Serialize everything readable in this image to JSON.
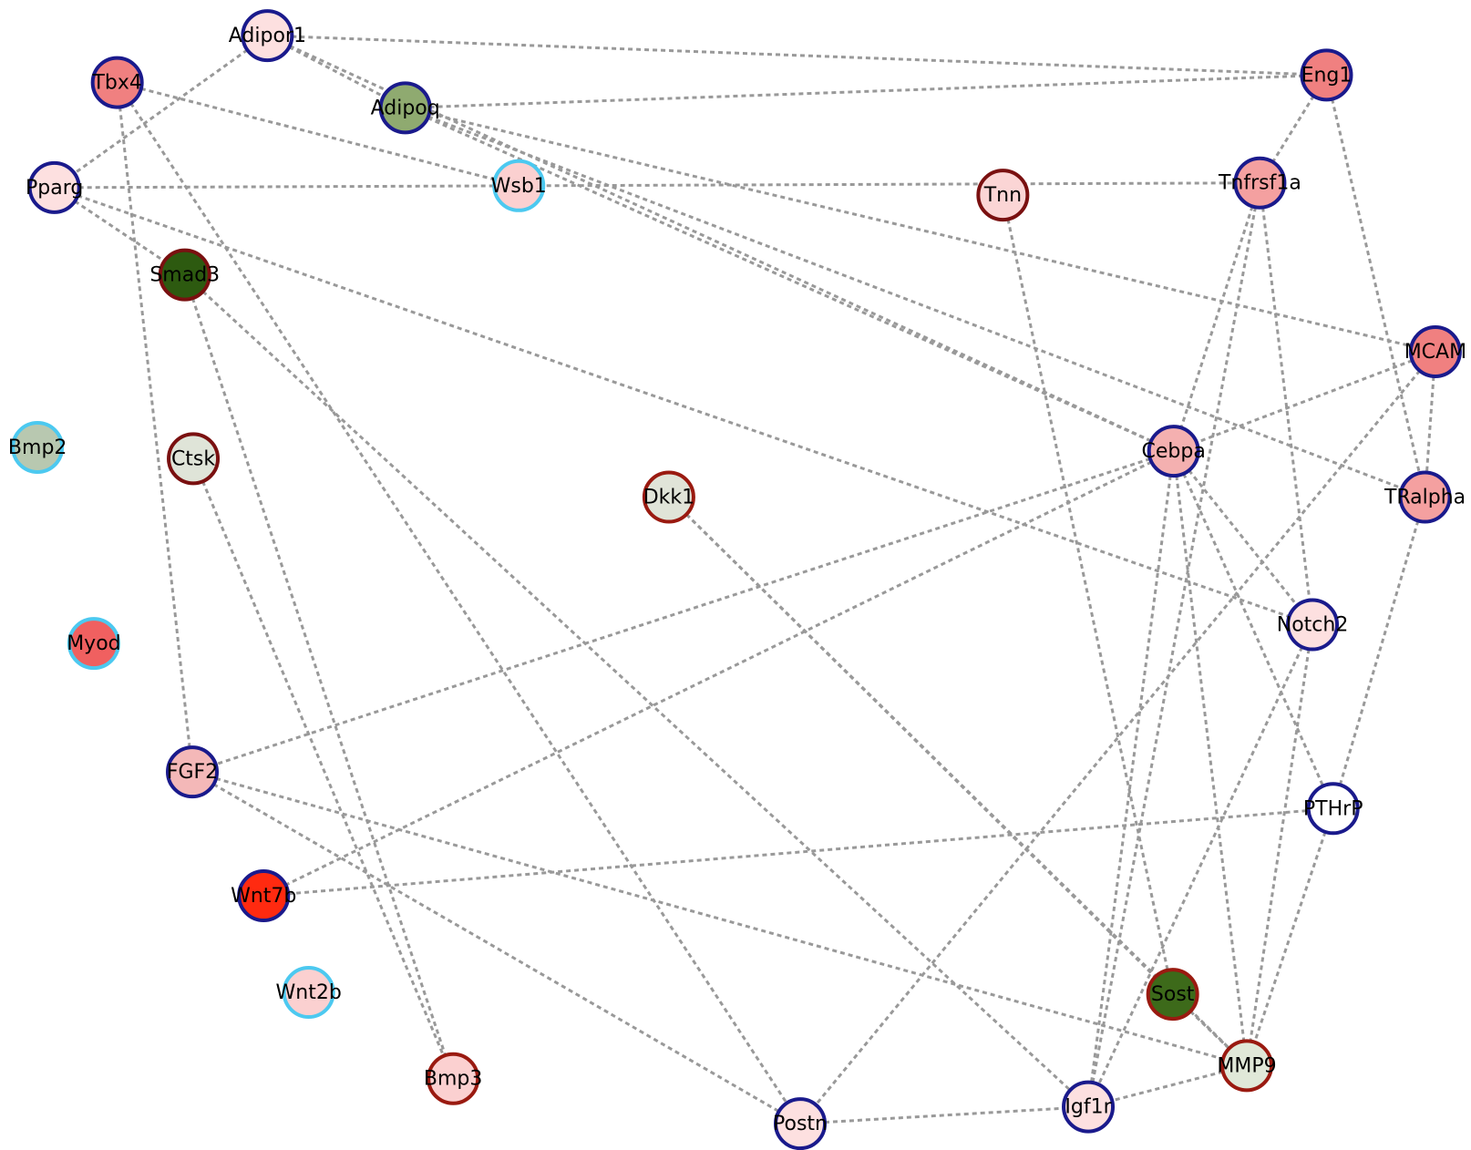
{
  "nodes": [
    {
      "label": "Adipor1"
    },
    {
      "label": "Tbx4"
    },
    {
      "label": "Adipoq"
    },
    {
      "label": "Eng1"
    },
    {
      "label": "Pparg"
    },
    {
      "label": "Wsb1"
    },
    {
      "label": "Tnn"
    },
    {
      "label": "Tnfrsf1a"
    },
    {
      "label": "Smad3"
    },
    {
      "label": "MCAM"
    },
    {
      "label": "Bmp2"
    },
    {
      "label": "Ctsk"
    },
    {
      "label": "Cebpa"
    },
    {
      "label": "Dkk1"
    },
    {
      "label": "TRalpha"
    },
    {
      "label": "Myod"
    },
    {
      "label": "Notch2"
    },
    {
      "label": "FGF2"
    },
    {
      "label": "PTHrP"
    },
    {
      "label": "Wnt7b"
    },
    {
      "label": "Wnt2b"
    },
    {
      "label": "Sost"
    },
    {
      "label": "Bmp3"
    },
    {
      "label": "MMP9"
    },
    {
      "label": "Postn"
    },
    {
      "label": "Igf1r"
    }
  ]
}
